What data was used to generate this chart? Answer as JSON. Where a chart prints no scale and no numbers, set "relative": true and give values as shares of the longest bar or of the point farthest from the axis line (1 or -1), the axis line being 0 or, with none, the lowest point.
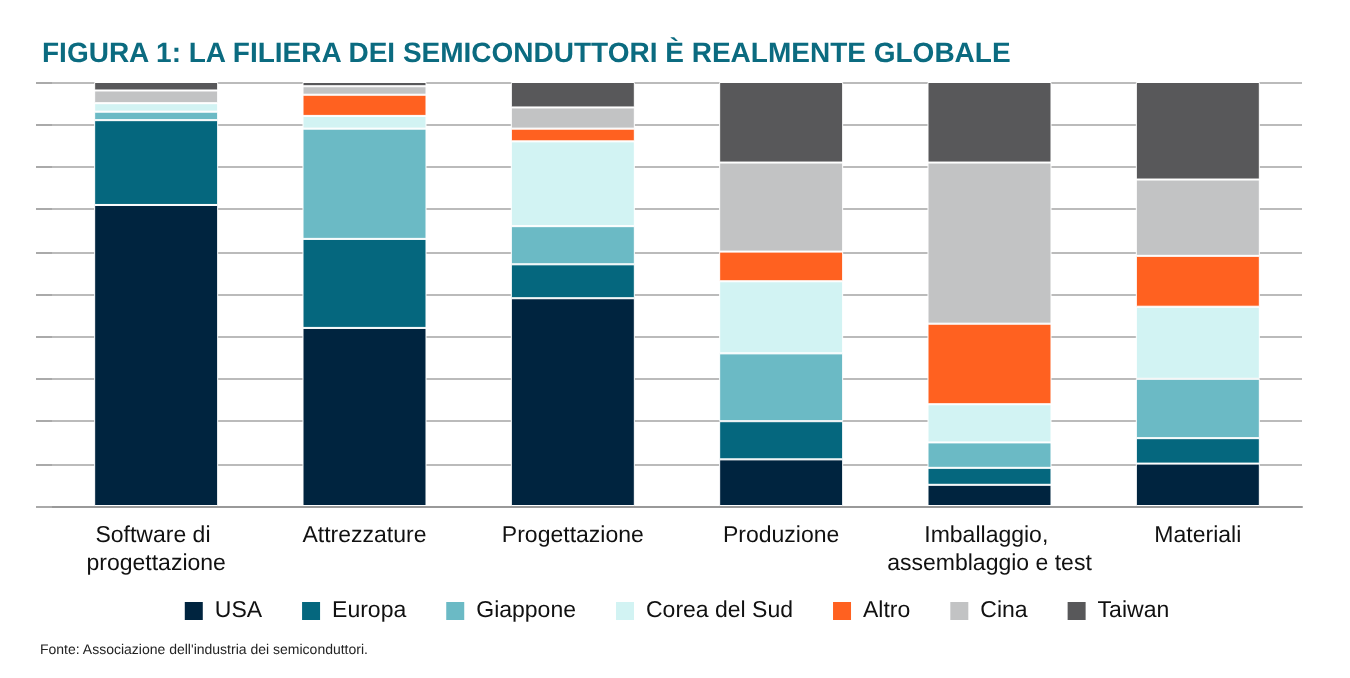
{
  "chart_data": {
    "type": "bar",
    "title": "FIGURA 1: LA FILIERA DEI SEMICONDUTTORI È REALMENTE GLOBALE",
    "categories": [
      "Software di progettazione",
      "Attrezzature",
      "Progettazione",
      "Produzione",
      "Imballaggio, assemblaggio e test",
      "Materiali"
    ],
    "series": [
      {
        "name": "USA",
        "color": "#00243f",
        "values": [
          0.71,
          0.42,
          0.49,
          0.11,
          0.05,
          0.1
        ]
      },
      {
        "name": "Europa",
        "color": "#05677e",
        "values": [
          0.2,
          0.21,
          0.08,
          0.09,
          0.04,
          0.06
        ]
      },
      {
        "name": "Giappone",
        "color": "#6bbac5",
        "values": [
          0.02,
          0.26,
          0.09,
          0.16,
          0.06,
          0.14
        ]
      },
      {
        "name": "Corea del Sud",
        "color": "#d2f3f3",
        "values": [
          0.02,
          0.03,
          0.2,
          0.17,
          0.09,
          0.17
        ]
      },
      {
        "name": "Altro",
        "color": "#ff6120",
        "values": [
          0.0,
          0.05,
          0.03,
          0.07,
          0.19,
          0.12
        ]
      },
      {
        "name": "Cina",
        "color": "#c2c3c4",
        "values": [
          0.03,
          0.02,
          0.05,
          0.21,
          0.38,
          0.18
        ]
      },
      {
        "name": "Taiwan",
        "color": "#58585a",
        "values": [
          0.02,
          0.01,
          0.06,
          0.19,
          0.19,
          0.23
        ]
      }
    ],
    "stacked": true,
    "relative": true,
    "grid": "y",
    "legend": "bottom",
    "annotations": [
      "Fonte: Associazione dell'industria dei semiconduttori."
    ]
  }
}
